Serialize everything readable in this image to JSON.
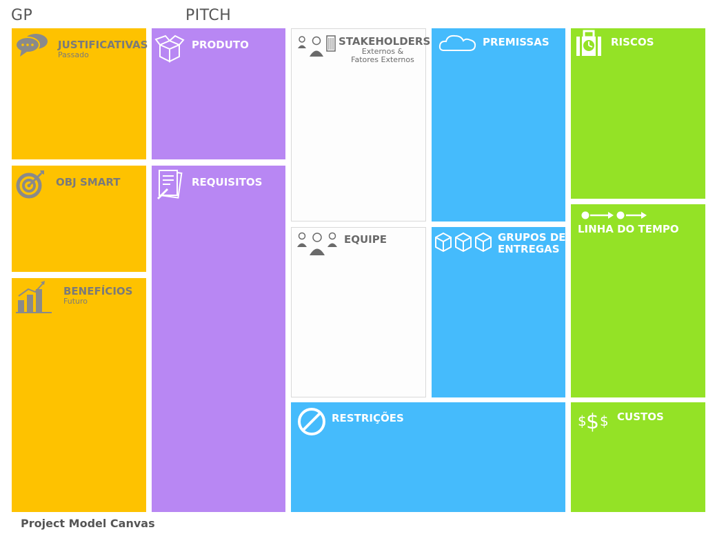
{
  "header": {
    "left_label": "GP",
    "middle_label": "PITCH"
  },
  "footer": {
    "title": "Project Model Canvas"
  },
  "colors": {
    "orange": "#FEC200",
    "purple": "#B887F3",
    "white": "#FDFDFD",
    "blue": "#45BBFC",
    "green": "#94E226"
  },
  "blocks": {
    "justificativas": {
      "title": "JUSTIFICATIVAS",
      "subtitle": "Passado",
      "icon": "speech-bubbles-icon"
    },
    "obj_smart": {
      "title": "OBJ SMART",
      "icon": "target-icon"
    },
    "beneficios": {
      "title": "BENEFÍCIOS",
      "subtitle": "Futuro",
      "icon": "bar-chart-icon"
    },
    "produto": {
      "title": "PRODUTO",
      "icon": "open-box-icon"
    },
    "requisitos": {
      "title": "REQUISITOS",
      "icon": "document-icon"
    },
    "stakeholders": {
      "title": "STAKEHOLDERS",
      "subtitle_line1": "Externos &",
      "subtitle_line2": "Fatores Externos",
      "icon": "people-building-icon"
    },
    "equipe": {
      "title": "EQUIPE",
      "icon": "team-icon"
    },
    "premissas": {
      "title": "PREMISSAS",
      "icon": "cloud-icon"
    },
    "grupos_de_entregas": {
      "title_line1": "GRUPOS DE",
      "title_line2": "ENTREGAS",
      "icon": "boxes-icon"
    },
    "restricoes": {
      "title": "RESTRIÇÕES",
      "icon": "prohibited-icon"
    },
    "riscos": {
      "title": "RISCOS",
      "icon": "bag-clock-icon"
    },
    "linha_do_tempo": {
      "title": "LINHA DO TEMPO",
      "icon": "timeline-icon"
    },
    "custos": {
      "title": "CUSTOS",
      "icon": "dollar-signs-icon"
    }
  }
}
